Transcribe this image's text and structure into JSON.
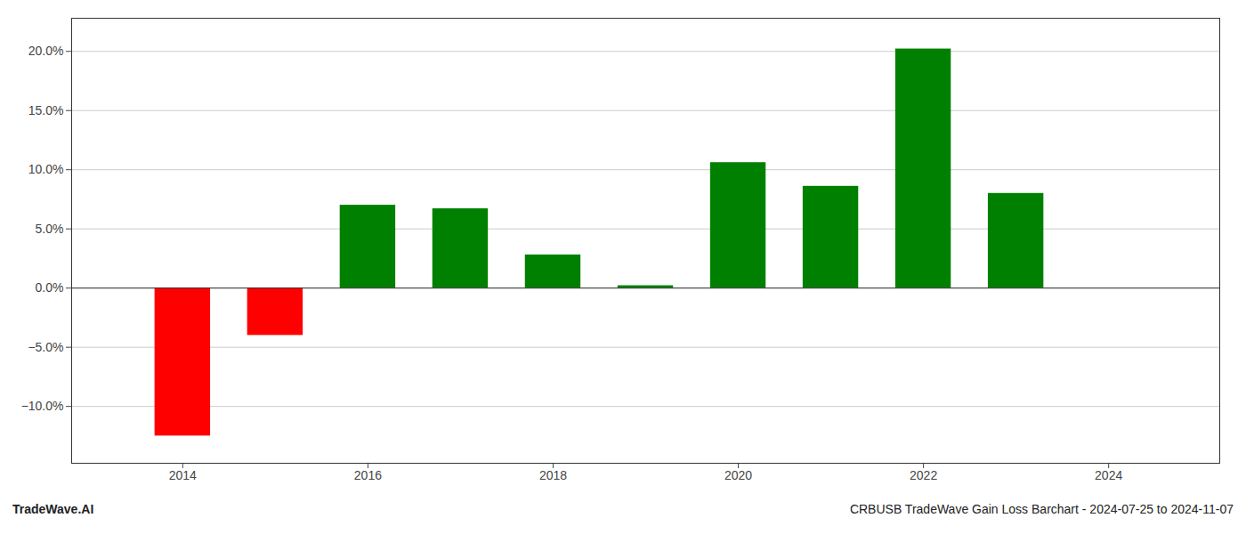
{
  "chart_data": {
    "type": "bar",
    "x": [
      2014,
      2015,
      2016,
      2017,
      2018,
      2019,
      2020,
      2021,
      2022,
      2023
    ],
    "values": [
      -0.125,
      -0.04,
      0.07,
      0.067,
      0.028,
      0.002,
      0.106,
      0.086,
      0.202,
      0.08
    ],
    "colors": [
      "#ff0000",
      "#ff0000",
      "#008000",
      "#008000",
      "#008000",
      "#008000",
      "#008000",
      "#008000",
      "#008000",
      "#008000"
    ],
    "xlim": [
      2012.8,
      2025.2
    ],
    "xticks": [
      2014,
      2016,
      2018,
      2020,
      2022,
      2024
    ],
    "ylim": [
      -0.148,
      0.228
    ],
    "yticks": [
      {
        "value": -0.1,
        "label": "−10.0%"
      },
      {
        "value": -0.05,
        "label": "−5.0%"
      },
      {
        "value": 0.0,
        "label": "0.0%"
      },
      {
        "value": 0.05,
        "label": "5.0%"
      },
      {
        "value": 0.1,
        "label": "10.0%"
      },
      {
        "value": 0.15,
        "label": "15.0%"
      },
      {
        "value": 0.2,
        "label": "20.0%"
      }
    ],
    "grid": true,
    "annotations": [
      "TradeWave.AI",
      "CRBUSB TradeWave Gain Loss Barchart - 2024-07-25 to 2024-11-07"
    ]
  }
}
